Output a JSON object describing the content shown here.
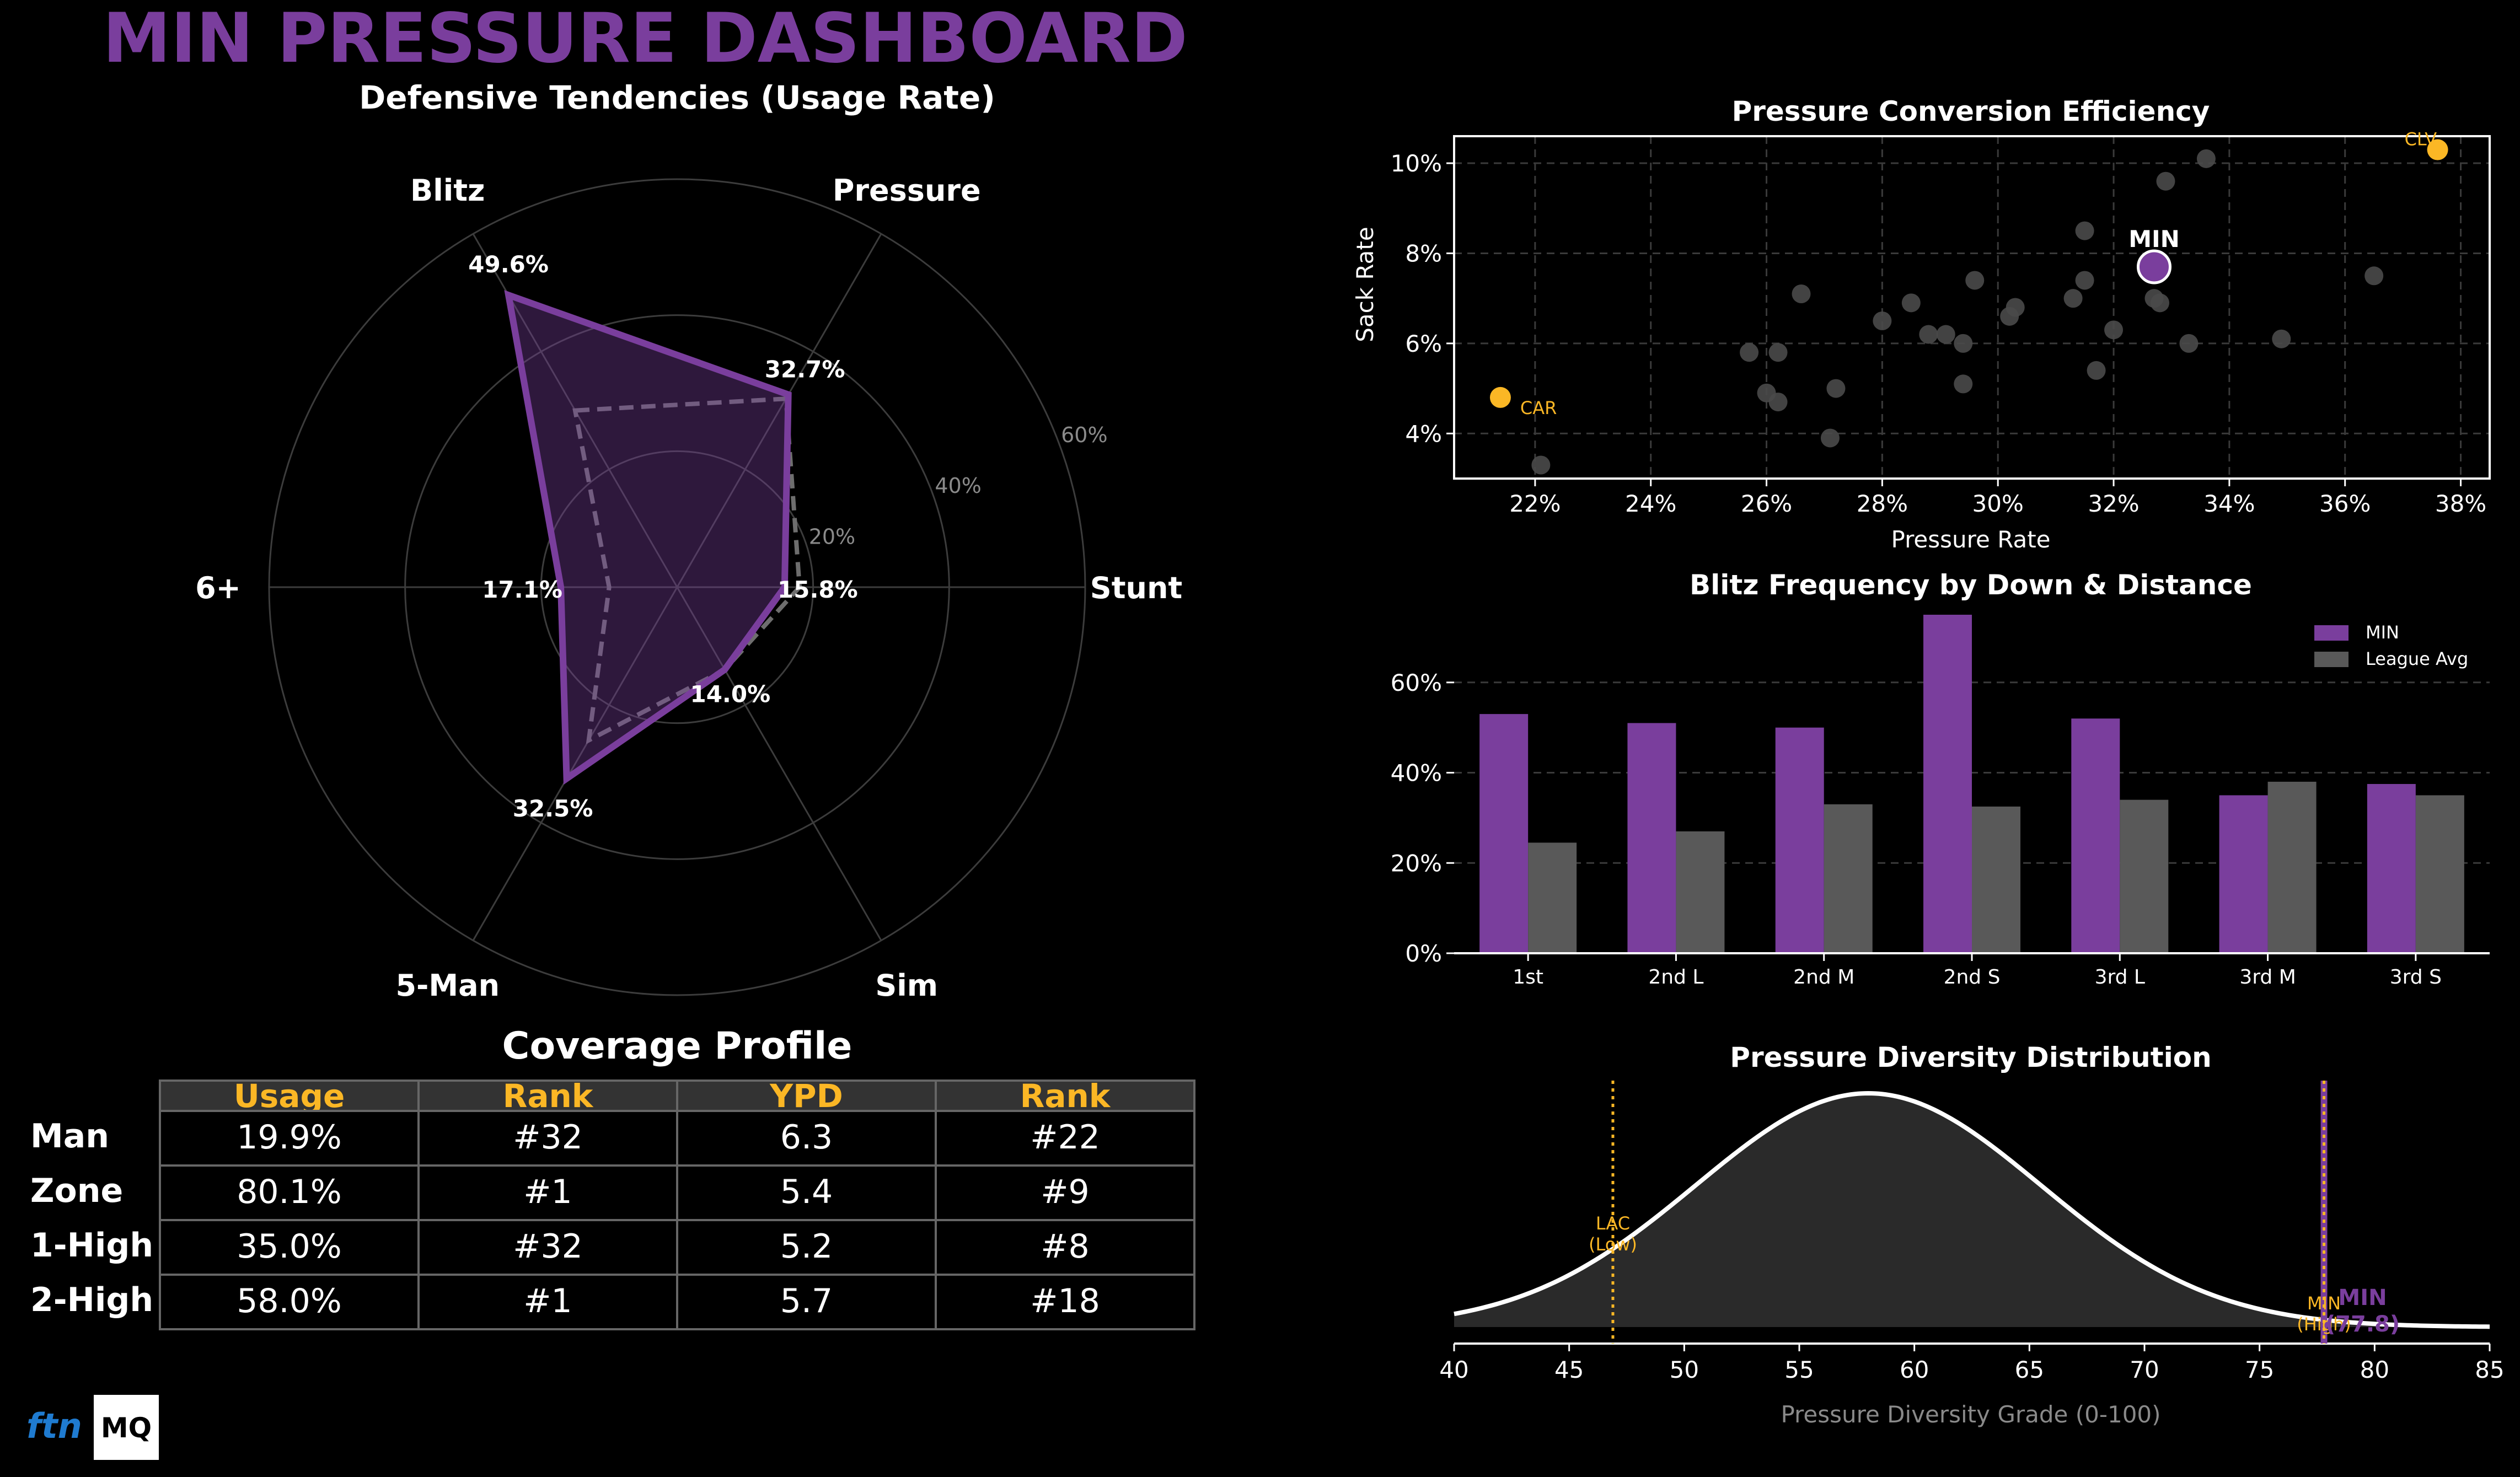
{
  "title": "MIN PRESSURE DASHBOARD",
  "colors": {
    "min": "#7a3e9d",
    "league": "#595959",
    "highlight": "#fbb725",
    "grid": "#3a3a3a",
    "dot": "#4a4a4a"
  },
  "radar": {
    "title": "Defensive Tendencies (Usage Rate)",
    "axes": [
      "Blitz",
      "Pressure",
      "Stunt",
      "Sim",
      "5-Man",
      "6+"
    ],
    "team_values": [
      49.6,
      32.7,
      15.8,
      14.0,
      32.5,
      17.1
    ],
    "league_values": [
      30,
      32,
      18,
      14,
      26,
      10
    ],
    "value_labels": [
      "49.6%",
      "32.7%",
      "15.8%",
      "14.0%",
      "32.5%",
      "17.1%"
    ],
    "ring_values": [
      20,
      40,
      60
    ],
    "ring_labels": [
      "20%",
      "40%",
      "60%"
    ],
    "max": 60
  },
  "coverage": {
    "title": "Coverage Profile",
    "headers": [
      "Usage",
      "Rank",
      "YPD",
      "Rank"
    ],
    "rows": [
      {
        "label": "Man",
        "cells": [
          "19.9%",
          "#32",
          "6.3",
          "#22"
        ]
      },
      {
        "label": "Zone",
        "cells": [
          "80.1%",
          "#1",
          "5.4",
          "#9"
        ]
      },
      {
        "label": "1-High",
        "cells": [
          "35.0%",
          "#32",
          "5.2",
          "#8"
        ]
      },
      {
        "label": "2-High",
        "cells": [
          "58.0%",
          "#1",
          "5.7",
          "#18"
        ]
      }
    ]
  },
  "chart_data": [
    {
      "type": "scatter",
      "title": "Pressure Conversion Efficiency",
      "xlabel": "Pressure Rate",
      "ylabel": "Sack Rate",
      "xlim": [
        20.6,
        38.5
      ],
      "ylim": [
        3.0,
        10.6
      ],
      "xticks": [
        22,
        24,
        26,
        28,
        30,
        32,
        34,
        36,
        38
      ],
      "yticks": [
        4,
        6,
        8,
        10
      ],
      "tick_suffix": "%",
      "points": [
        [
          22.1,
          3.3
        ],
        [
          25.7,
          5.8
        ],
        [
          26.0,
          4.9
        ],
        [
          26.2,
          4.7
        ],
        [
          26.2,
          5.8
        ],
        [
          26.6,
          7.1
        ],
        [
          27.1,
          3.9
        ],
        [
          27.2,
          5.0
        ],
        [
          28.0,
          6.5
        ],
        [
          28.5,
          6.9
        ],
        [
          28.8,
          6.2
        ],
        [
          29.1,
          6.2
        ],
        [
          29.4,
          5.1
        ],
        [
          29.4,
          6.0
        ],
        [
          29.6,
          7.4
        ],
        [
          30.2,
          6.6
        ],
        [
          30.3,
          6.8
        ],
        [
          31.3,
          7.0
        ],
        [
          31.5,
          7.4
        ],
        [
          31.5,
          8.5
        ],
        [
          31.7,
          5.4
        ],
        [
          32.0,
          6.3
        ],
        [
          32.7,
          7.0
        ],
        [
          32.8,
          6.9
        ],
        [
          32.9,
          9.6
        ],
        [
          33.3,
          6.0
        ],
        [
          33.6,
          10.1
        ],
        [
          34.9,
          6.1
        ],
        [
          36.5,
          7.5
        ]
      ],
      "highlights": [
        {
          "label": "CLV",
          "x": 37.6,
          "y": 10.3
        },
        {
          "label": "CAR",
          "x": 21.4,
          "y": 4.8
        }
      ],
      "team": {
        "label": "MIN",
        "x": 32.7,
        "y": 7.7
      }
    },
    {
      "type": "bar",
      "title": "Blitz Frequency by Down & Distance",
      "categories": [
        "1st",
        "2nd L",
        "2nd M",
        "2nd S",
        "3rd L",
        "3rd M",
        "3rd S"
      ],
      "series": [
        {
          "name": "MIN",
          "values": [
            53,
            51,
            50,
            75,
            52,
            35,
            37.5
          ]
        },
        {
          "name": "League Avg",
          "values": [
            24.5,
            27,
            33,
            32.5,
            34,
            38,
            35
          ]
        }
      ],
      "ylim": [
        0,
        75
      ],
      "yticks": [
        0,
        20,
        40,
        60
      ],
      "ytick_labels": [
        "0%",
        "20%",
        "40%",
        "60%"
      ]
    },
    {
      "type": "area",
      "title": "Pressure Diversity Distribution",
      "xlabel": "Pressure Diversity Grade (0-100)",
      "xlim": [
        40,
        85
      ],
      "xticks": [
        40,
        45,
        50,
        55,
        60,
        65,
        70,
        75,
        80,
        85
      ],
      "distribution": {
        "mean": 58,
        "sd": 7.5
      },
      "markers": [
        {
          "x": 46.9,
          "label": "LAC\n(Low)"
        },
        {
          "x": 77.8,
          "label": "MIN\n(High)"
        }
      ],
      "team_line": {
        "x": 77.8,
        "label": "MIN\n(77.8)"
      }
    }
  ],
  "logos": {
    "left": "ftn",
    "right": "MQ"
  }
}
